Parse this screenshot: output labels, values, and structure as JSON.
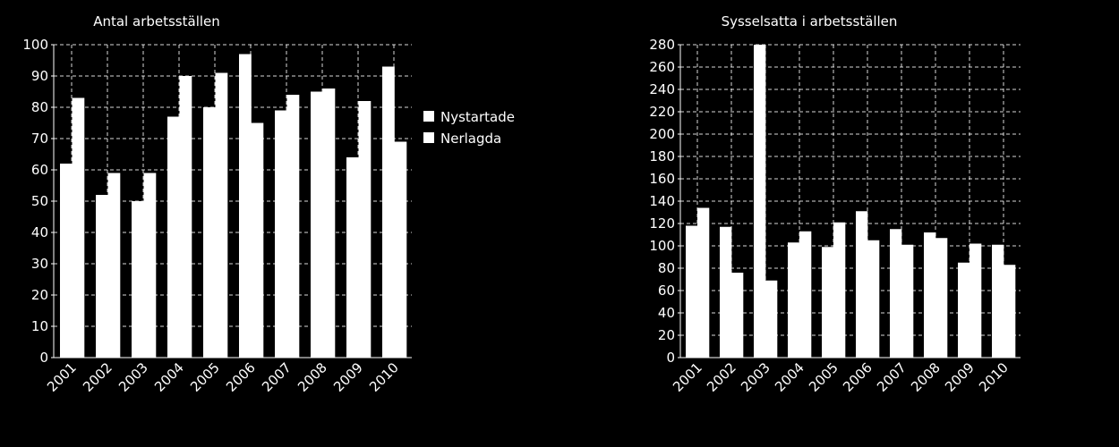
{
  "chart_data": [
    {
      "type": "bar",
      "title": "Antal arbetsställen",
      "categories": [
        "2001",
        "2002",
        "2003",
        "2004",
        "2005",
        "2006",
        "2007",
        "2008",
        "2009",
        "2010"
      ],
      "series": [
        {
          "name": "Nystartade",
          "values": [
            62,
            52,
            50,
            77,
            80,
            97,
            79,
            85,
            64,
            93
          ]
        },
        {
          "name": "Nerlagda",
          "values": [
            83,
            59,
            59,
            90,
            91,
            75,
            84,
            86,
            82,
            69
          ]
        }
      ],
      "ylim": [
        0,
        100
      ],
      "yticks": [
        0,
        10,
        20,
        30,
        40,
        50,
        60,
        70,
        80,
        90,
        100
      ],
      "grid": true,
      "legend": "right"
    },
    {
      "type": "bar",
      "title": "Sysselsatta i arbetsställen",
      "categories": [
        "2001",
        "2002",
        "2003",
        "2004",
        "2005",
        "2006",
        "2007",
        "2008",
        "2009",
        "2010"
      ],
      "series": [
        {
          "name": "Nystartade",
          "values": [
            118,
            117,
            280,
            103,
            99,
            131,
            115,
            112,
            85,
            101
          ]
        },
        {
          "name": "Nerlagda",
          "values": [
            134,
            76,
            69,
            113,
            121,
            105,
            101,
            107,
            102,
            83
          ]
        }
      ],
      "ylim": [
        0,
        280
      ],
      "yticks": [
        0,
        20,
        40,
        60,
        80,
        100,
        120,
        140,
        160,
        180,
        200,
        220,
        240,
        260,
        280
      ],
      "grid": true,
      "legend": "none"
    }
  ],
  "colors": {
    "background": "#000000",
    "bar": "#ffffff",
    "text": "#ffffff"
  }
}
